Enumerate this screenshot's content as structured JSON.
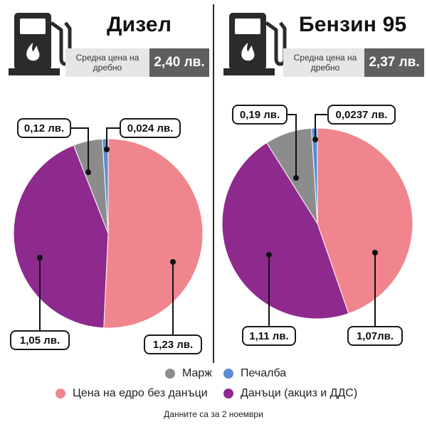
{
  "colors": {
    "margin": "#8c8c8c",
    "profit": "#5b8fd0",
    "wholesale": "#f0858d",
    "taxes": "#8e2a8e",
    "dark": "#2b2b2b",
    "label_bg": "#e6e6e6",
    "value_bg": "#5f5f5f"
  },
  "icons": {
    "pump": "fuel-pump-icon",
    "flame": "flame-icon"
  },
  "panels": [
    {
      "title": "Дизел",
      "price_label": "Средна цена на дребно",
      "price_value": "2,40 лв."
    },
    {
      "title": "Бензин 95",
      "price_label": "Средна цена на дребно",
      "price_value": "2,37 лв."
    }
  ],
  "chart_data": [
    {
      "type": "pie",
      "title": "Дизел",
      "slices": [
        {
          "name": "Цена на едро без данъци",
          "value": 1.23,
          "label": "1,23 лв."
        },
        {
          "name": "Данъци (акциз и ДДС)",
          "value": 1.05,
          "label": "1,05 лв."
        },
        {
          "name": "Марж",
          "value": 0.12,
          "label": "0,12 лв."
        },
        {
          "name": "Печалба",
          "value": 0.024,
          "label": "0,024 лв."
        }
      ],
      "legend": "bottom"
    },
    {
      "type": "pie",
      "title": "Бензин 95",
      "slices": [
        {
          "name": "Цена на едро без данъци",
          "value": 1.07,
          "label": "1,07лв."
        },
        {
          "name": "Данъци (акциз и ДДС)",
          "value": 1.11,
          "label": "1,11 лв."
        },
        {
          "name": "Марж",
          "value": 0.19,
          "label": "0,19 лв."
        },
        {
          "name": "Печалба",
          "value": 0.0237,
          "label": "0,0237 лв."
        }
      ],
      "legend": "bottom"
    }
  ],
  "legend": [
    {
      "key": "margin",
      "label": "Марж"
    },
    {
      "key": "profit",
      "label": "Печалба"
    },
    {
      "key": "wholesale",
      "label": "Цена на едро без данъци"
    },
    {
      "key": "taxes",
      "label": "Данъци (акциз и ДДС)"
    }
  ],
  "footnote": "Данните са за 2 ноември"
}
